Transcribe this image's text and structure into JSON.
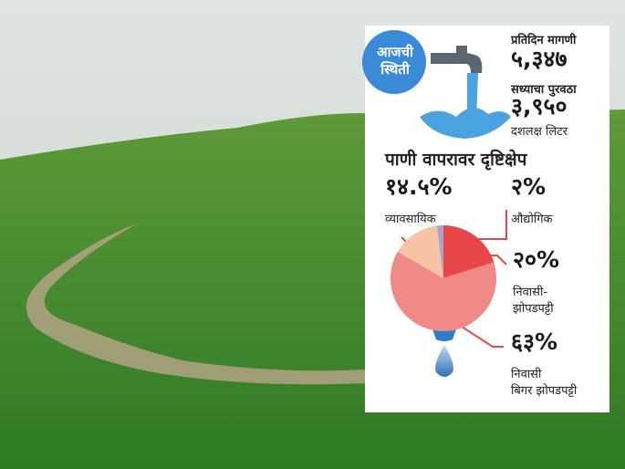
{
  "chart_data": {
    "type": "pie",
    "badge": "आजची स्थिती",
    "stats": [
      {
        "label": "प्रतिदिन मागणी",
        "value_text": "५,३४७"
      },
      {
        "label": "सध्याचा पुरवठा",
        "value_text": "३,९५०",
        "unit": "दशलक्ष लिटर"
      }
    ],
    "title": "पाणी वापरावर दृष्टिक्षेप",
    "categories": [
      "निवासी-\nझोपडपट्टी",
      "निवासी\nबिगर झोपडपट्टी",
      "व्यावसायिक",
      "औद्योगिक"
    ],
    "values": [
      20,
      63,
      14.5,
      2
    ],
    "value_labels": [
      "२०%",
      "६३%",
      "१४.५%",
      "२%"
    ],
    "colors": [
      "#e8474a",
      "#ef8a86",
      "#f6c3a4",
      "#a8a6c8"
    ]
  }
}
